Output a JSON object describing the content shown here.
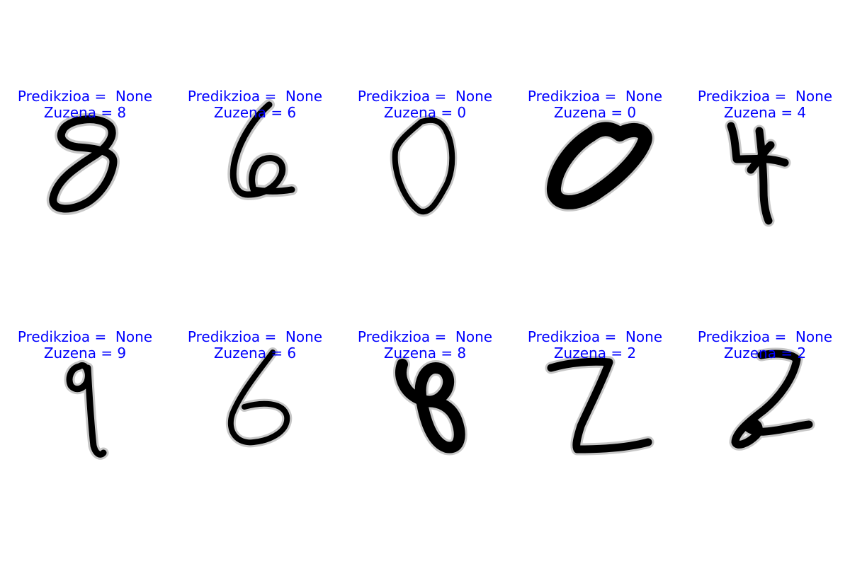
{
  "title_prefix": "Predikzioa = ",
  "title_color": "#0000ff",
  "cmap": "gray_r",
  "samples": [
    {
      "prediction": "Predikzioa =  None",
      "label": "Zuzena = 8",
      "digit": "8",
      "glyph": "eight-a"
    },
    {
      "prediction": "Predikzioa =  None",
      "label": "Zuzena = 6",
      "digit": "6",
      "glyph": "six-a"
    },
    {
      "prediction": "Predikzioa =  None",
      "label": "Zuzena = 0",
      "digit": "0",
      "glyph": "zero-a"
    },
    {
      "prediction": "Predikzioa =  None",
      "label": "Zuzena = 0",
      "digit": "0",
      "glyph": "zero-b"
    },
    {
      "prediction": "Predikzioa =  None",
      "label": "Zuzena = 4",
      "digit": "4",
      "glyph": "four-a"
    },
    {
      "prediction": "Predikzioa =  None",
      "label": "Zuzena = 9",
      "digit": "9",
      "glyph": "nine-a"
    },
    {
      "prediction": "Predikzioa =  None",
      "label": "Zuzena = 6",
      "digit": "6",
      "glyph": "six-b"
    },
    {
      "prediction": "Predikzioa =  None",
      "label": "Zuzena = 8",
      "digit": "8",
      "glyph": "eight-b"
    },
    {
      "prediction": "Predikzioa =  None",
      "label": "Zuzena = 2",
      "digit": "2",
      "glyph": "two-a"
    },
    {
      "prediction": "Predikzioa =  None",
      "label": "Zuzena = 2",
      "digit": "2",
      "glyph": "two-b"
    }
  ]
}
